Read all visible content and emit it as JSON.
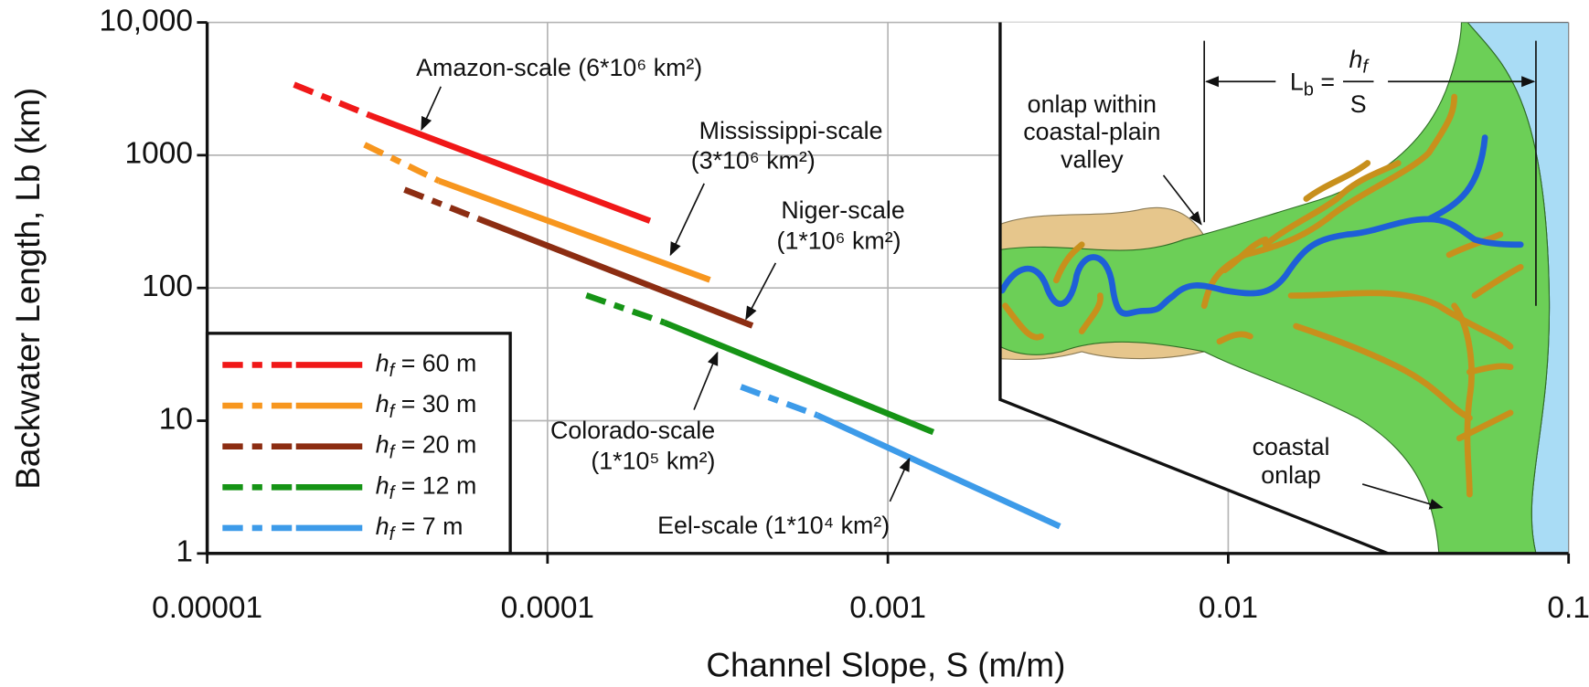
{
  "chart_data": {
    "type": "line",
    "x_label": "Channel Slope, S (m/m)",
    "y_label": "Backwater Length, Lb (km)",
    "xscale": "log",
    "yscale": "log",
    "xlim": [
      1e-05,
      0.1
    ],
    "ylim": [
      1,
      10000
    ],
    "xticks": [
      1e-05,
      0.0001,
      0.001,
      0.01,
      0.1
    ],
    "yticks": [
      1,
      10,
      100,
      1000,
      {
        "value": 10000,
        "label": "10,000"
      }
    ],
    "grid": true,
    "legend": "lower left",
    "series": [
      {
        "name": "hf = 60 m",
        "color": "#f01818",
        "x": [
          1.8e-05,
          3e-05,
          0.0002
        ],
        "values": [
          3400,
          2000,
          320
        ]
      },
      {
        "name": "hf = 30 m",
        "color": "#f7961e",
        "x": [
          2.9e-05,
          4.8e-05,
          0.0003
        ],
        "values": [
          1200,
          640,
          115
        ]
      },
      {
        "name": "hf = 20 m",
        "color": "#8c2d12",
        "x": [
          3.8e-05,
          6.3e-05,
          0.0004
        ],
        "values": [
          550,
          330,
          52
        ]
      },
      {
        "name": "hf = 12 m",
        "color": "#169416",
        "x": [
          0.00013,
          0.00022,
          0.00136
        ],
        "values": [
          88,
          55,
          8.2
        ]
      },
      {
        "name": "hf = 7 m",
        "color": "#3d9be9",
        "x": [
          0.00037,
          0.00062,
          0.0032
        ],
        "values": [
          18,
          11,
          1.6
        ]
      }
    ],
    "annotations": [
      "Amazon-scale (6*10⁶ km²)",
      "Mississippi-scale",
      "(3*10⁶ km²)",
      "Niger-scale",
      "(1*10⁶ km²)",
      "Colorado-scale",
      "(1*10⁵ km²)",
      "Eel-scale (1*10⁴ km²)"
    ],
    "inset": {
      "labels": [
        "onlap within",
        "coastal-plain",
        "valley",
        "coastal",
        "onlap"
      ],
      "formula": [
        "Lb =",
        "hf",
        "S"
      ]
    }
  }
}
